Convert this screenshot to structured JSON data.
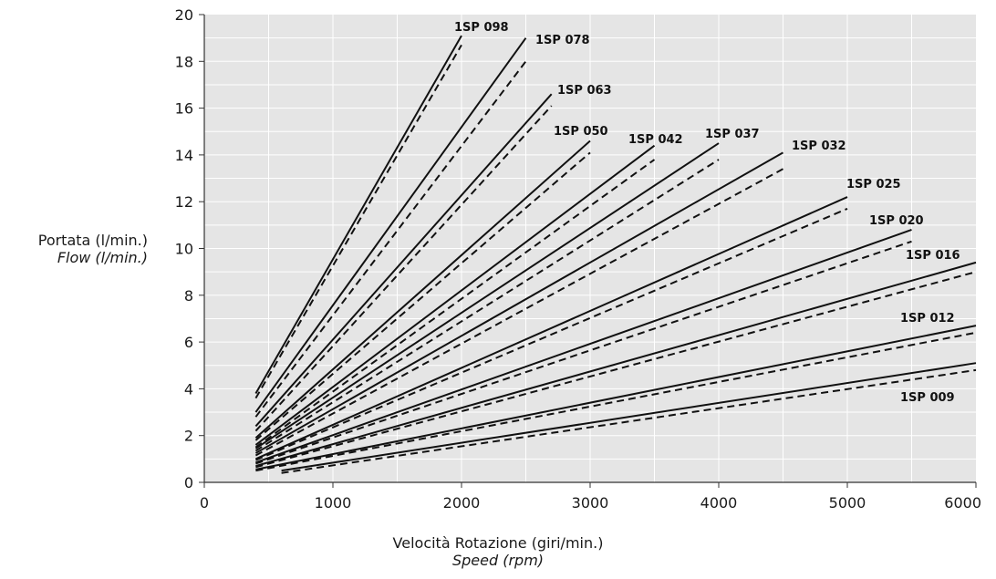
{
  "chart_data": {
    "type": "line",
    "title": "",
    "ylabel": "Portata (l/min.)",
    "ylabel_sub": "Flow (l/min.)",
    "xlabel": "Velocità Rotazione (giri/min.)",
    "xlabel_sub": "Speed (rpm)",
    "xlim": [
      0,
      6000
    ],
    "ylim": [
      0,
      20
    ],
    "xticks": [
      0,
      1000,
      2000,
      3000,
      4000,
      5000,
      6000
    ],
    "yticks": [
      0,
      2,
      4,
      6,
      8,
      10,
      12,
      14,
      16,
      18,
      20
    ],
    "grid": true,
    "line_styles": [
      "solid",
      "dashed"
    ],
    "series": [
      {
        "name": "1SP 098",
        "solid": {
          "x": [
            400,
            2000
          ],
          "y": [
            3.8,
            19.1
          ]
        },
        "dashed": {
          "x": [
            400,
            2000
          ],
          "y": [
            3.6,
            18.7
          ]
        }
      },
      {
        "name": "1SP 078",
        "solid": {
          "x": [
            400,
            2500
          ],
          "y": [
            3.0,
            19.0
          ]
        },
        "dashed": {
          "x": [
            400,
            2500
          ],
          "y": [
            2.8,
            18.0
          ]
        }
      },
      {
        "name": "1SP 063",
        "solid": {
          "x": [
            400,
            2700
          ],
          "y": [
            2.4,
            16.6
          ]
        },
        "dashed": {
          "x": [
            400,
            2700
          ],
          "y": [
            2.2,
            16.1
          ]
        }
      },
      {
        "name": "1SP 050",
        "solid": {
          "x": [
            400,
            3000
          ],
          "y": [
            1.9,
            14.6
          ]
        },
        "dashed": {
          "x": [
            400,
            3000
          ],
          "y": [
            1.8,
            14.1
          ]
        }
      },
      {
        "name": "1SP 042",
        "solid": {
          "x": [
            400,
            3500
          ],
          "y": [
            1.6,
            14.4
          ]
        },
        "dashed": {
          "x": [
            400,
            3500
          ],
          "y": [
            1.5,
            13.8
          ]
        }
      },
      {
        "name": "1SP 037",
        "solid": {
          "x": [
            400,
            4000
          ],
          "y": [
            1.45,
            14.5
          ]
        },
        "dashed": {
          "x": [
            400,
            4000
          ],
          "y": [
            1.35,
            13.8
          ]
        }
      },
      {
        "name": "1SP 032",
        "solid": {
          "x": [
            400,
            4500
          ],
          "y": [
            1.25,
            14.1
          ]
        },
        "dashed": {
          "x": [
            400,
            4500
          ],
          "y": [
            1.15,
            13.4
          ]
        }
      },
      {
        "name": "1SP 025",
        "solid": {
          "x": [
            400,
            5000
          ],
          "y": [
            1.0,
            12.2
          ]
        },
        "dashed": {
          "x": [
            400,
            5000
          ],
          "y": [
            0.95,
            11.7
          ]
        }
      },
      {
        "name": "1SP 020",
        "solid": {
          "x": [
            400,
            5500
          ],
          "y": [
            0.85,
            10.8
          ]
        },
        "dashed": {
          "x": [
            400,
            5500
          ],
          "y": [
            0.8,
            10.3
          ]
        }
      },
      {
        "name": "1SP 016",
        "solid": {
          "x": [
            400,
            6000
          ],
          "y": [
            0.7,
            9.4
          ]
        },
        "dashed": {
          "x": [
            400,
            6000
          ],
          "y": [
            0.65,
            9.0
          ]
        }
      },
      {
        "name": "1SP 012",
        "solid": {
          "x": [
            400,
            6000
          ],
          "y": [
            0.55,
            6.7
          ]
        },
        "dashed": {
          "x": [
            400,
            6000
          ],
          "y": [
            0.5,
            6.4
          ]
        }
      },
      {
        "name": "1SP 009",
        "solid": {
          "x": [
            600,
            6000
          ],
          "y": [
            0.5,
            5.1
          ]
        },
        "dashed": {
          "x": [
            600,
            6000
          ],
          "y": [
            0.4,
            4.8
          ]
        }
      }
    ]
  }
}
